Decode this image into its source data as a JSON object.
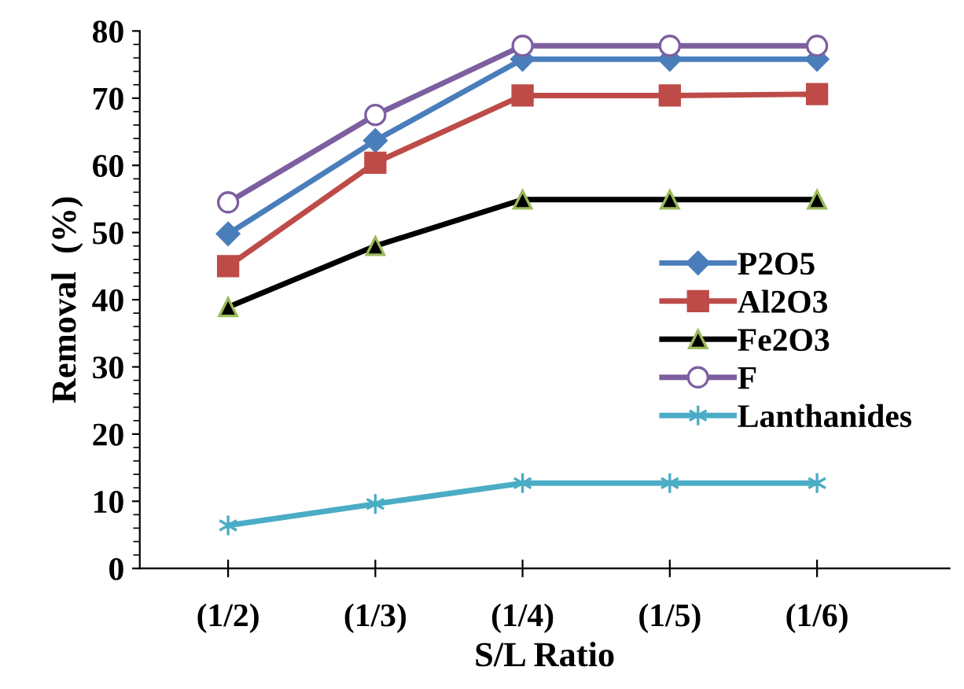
{
  "chart_data": {
    "type": "line",
    "xlabel": "S/L Ratio",
    "ylabel": "Removal  (%)",
    "categories": [
      "(1/2)",
      "(1/3)",
      "(1/4)",
      "(1/5)",
      "(1/6)"
    ],
    "ylim": [
      0,
      80
    ],
    "yticks": [
      0,
      10,
      20,
      30,
      40,
      50,
      60,
      70,
      80
    ],
    "grid": false,
    "legend": "right",
    "series": [
      {
        "name": "P2O5",
        "color": "#4a7ebb",
        "marker": "diamond",
        "values": [
          49.8,
          63.7,
          75.8,
          75.8,
          75.8
        ]
      },
      {
        "name": "Al2O3",
        "color": "#be4b48",
        "marker": "square",
        "values": [
          45.0,
          60.4,
          70.4,
          70.4,
          70.6
        ]
      },
      {
        "name": "Fe2O3",
        "color": "#000000",
        "marker": "triangle",
        "values": [
          38.9,
          48.0,
          54.9,
          54.9,
          54.9
        ]
      },
      {
        "name": "F",
        "color": "#7d5fa0",
        "marker": "circle",
        "values": [
          54.5,
          67.5,
          77.8,
          77.8,
          77.8
        ]
      },
      {
        "name": "Lanthanides",
        "color": "#4bacc6",
        "marker": "cross",
        "values": [
          6.4,
          9.6,
          12.7,
          12.7,
          12.7
        ]
      }
    ]
  }
}
